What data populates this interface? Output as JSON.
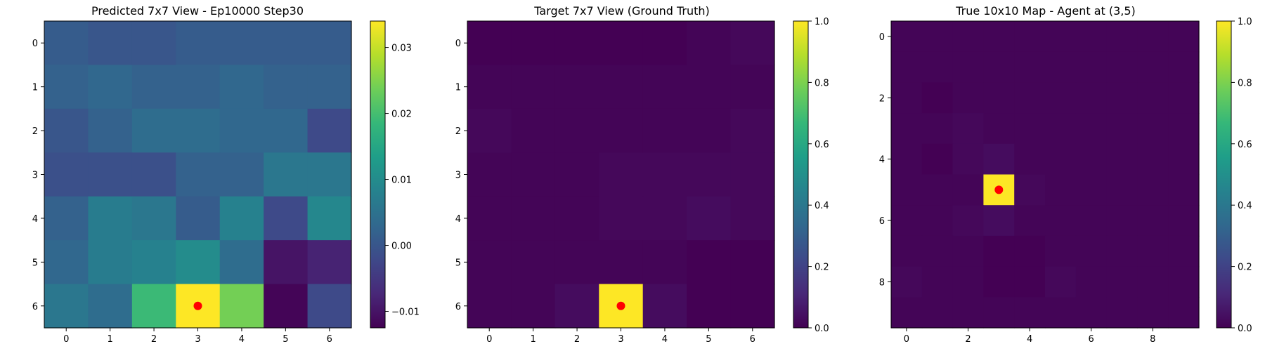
{
  "figure": {
    "panel_titles": [
      "Predicted 7x7 View - Ep10000 Step30",
      "Target 7x7 View (Ground Truth)",
      "True 10x10 Map - Agent at (3,5)"
    ]
  },
  "colors": {
    "viridis": [
      "#440154",
      "#482878",
      "#3e4989",
      "#31688e",
      "#26828e",
      "#1f9e89",
      "#35b779",
      "#6ece58",
      "#b5de2b",
      "#fde725"
    ],
    "agent_marker": "#ff0000",
    "axis": "#000000"
  },
  "chart_data": [
    {
      "type": "heatmap",
      "title": "Predicted 7x7 View - Ep10000 Step30",
      "x_ticks": [
        0,
        1,
        2,
        3,
        4,
        5,
        6
      ],
      "y_ticks": [
        0,
        1,
        2,
        3,
        4,
        5,
        6
      ],
      "grid_size": 7,
      "vmin": -0.0125,
      "vmax": 0.034,
      "colorbar_ticks": [
        -0.01,
        0.0,
        0.01,
        0.02,
        0.03
      ],
      "colorbar_tick_labels": [
        "−0.01",
        "0.00",
        "0.01",
        "0.02",
        "0.03"
      ],
      "marker": {
        "x": 3,
        "y": 6
      },
      "values": [
        [
          0.001,
          0.0,
          0.0,
          0.001,
          0.001,
          0.001,
          0.001
        ],
        [
          0.002,
          0.003,
          0.002,
          0.002,
          0.003,
          0.002,
          0.002
        ],
        [
          0.0,
          0.002,
          0.004,
          0.004,
          0.003,
          0.003,
          -0.002
        ],
        [
          -0.001,
          -0.001,
          -0.001,
          0.002,
          0.002,
          0.006,
          0.006
        ],
        [
          0.002,
          0.007,
          0.006,
          0.001,
          0.008,
          -0.002,
          0.009
        ],
        [
          0.003,
          0.007,
          0.008,
          0.01,
          0.004,
          -0.01,
          -0.008
        ],
        [
          0.006,
          0.004,
          0.019,
          0.034,
          0.024,
          -0.012,
          -0.002
        ]
      ]
    },
    {
      "type": "heatmap",
      "title": "Target 7x7 View (Ground Truth)",
      "x_ticks": [
        0,
        1,
        2,
        3,
        4,
        5,
        6
      ],
      "y_ticks": [
        0,
        1,
        2,
        3,
        4,
        5,
        6
      ],
      "grid_size": 7,
      "vmin": 0,
      "vmax": 1,
      "colorbar_ticks": [
        0.0,
        0.2,
        0.4,
        0.6,
        0.8,
        1.0
      ],
      "colorbar_tick_labels": [
        "0.0",
        "0.2",
        "0.4",
        "0.6",
        "0.8",
        "1.0"
      ],
      "marker": {
        "x": 3,
        "y": 6
      },
      "values": [
        [
          0.0,
          0.0,
          0.0,
          0.0,
          0.0,
          0.01,
          0.02
        ],
        [
          0.01,
          0.01,
          0.01,
          0.01,
          0.01,
          0.01,
          0.01
        ],
        [
          0.02,
          0.01,
          0.01,
          0.01,
          0.01,
          0.01,
          0.02
        ],
        [
          0.01,
          0.01,
          0.01,
          0.02,
          0.02,
          0.02,
          0.02
        ],
        [
          0.01,
          0.01,
          0.01,
          0.02,
          0.02,
          0.03,
          0.02
        ],
        [
          0.01,
          0.01,
          0.01,
          0.01,
          0.01,
          0.0,
          0.0
        ],
        [
          0.01,
          0.01,
          0.03,
          1.0,
          0.03,
          0.0,
          0.0
        ]
      ]
    },
    {
      "type": "heatmap",
      "title": "True 10x10 Map - Agent at (3,5)",
      "x_ticks": [
        0,
        2,
        4,
        6,
        8
      ],
      "y_ticks": [
        0,
        2,
        4,
        6,
        8
      ],
      "grid_size": 10,
      "vmin": 0,
      "vmax": 1,
      "colorbar_ticks": [
        0.0,
        0.2,
        0.4,
        0.6,
        0.8,
        1.0
      ],
      "colorbar_tick_labels": [
        "0.0",
        "0.2",
        "0.4",
        "0.6",
        "0.8",
        "1.0"
      ],
      "marker": {
        "x": 3,
        "y": 5
      },
      "values": [
        [
          0.01,
          0.01,
          0.01,
          0.01,
          0.01,
          0.01,
          0.01,
          0.01,
          0.01,
          0.01
        ],
        [
          0.01,
          0.01,
          0.01,
          0.01,
          0.01,
          0.01,
          0.01,
          0.01,
          0.01,
          0.01
        ],
        [
          0.01,
          0.0,
          0.01,
          0.01,
          0.01,
          0.01,
          0.01,
          0.01,
          0.01,
          0.01
        ],
        [
          0.01,
          0.01,
          0.02,
          0.01,
          0.01,
          0.01,
          0.01,
          0.01,
          0.01,
          0.01
        ],
        [
          0.01,
          0.0,
          0.02,
          0.03,
          0.01,
          0.01,
          0.01,
          0.01,
          0.01,
          0.01
        ],
        [
          0.01,
          0.01,
          0.01,
          1.0,
          0.02,
          0.01,
          0.01,
          0.01,
          0.01,
          0.01
        ],
        [
          0.01,
          0.01,
          0.02,
          0.03,
          0.01,
          0.01,
          0.01,
          0.01,
          0.01,
          0.01
        ],
        [
          0.01,
          0.01,
          0.01,
          0.0,
          0.0,
          0.01,
          0.01,
          0.01,
          0.01,
          0.01
        ],
        [
          0.02,
          0.01,
          0.01,
          0.0,
          0.0,
          0.02,
          0.01,
          0.01,
          0.01,
          0.01
        ],
        [
          0.01,
          0.01,
          0.01,
          0.01,
          0.01,
          0.01,
          0.01,
          0.01,
          0.01,
          0.01
        ]
      ]
    }
  ]
}
